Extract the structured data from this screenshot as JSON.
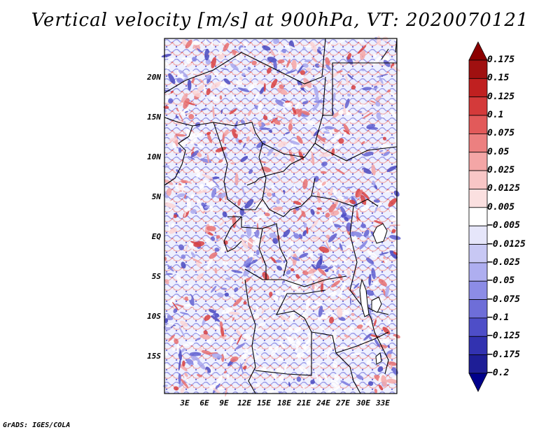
{
  "title": "Vertical velocity [m/s] at 900hPa, VT: 2020070121",
  "footer": "GrADS: IGES/COLA",
  "map": {
    "lat_labels": [
      "20N",
      "15N",
      "10N",
      "5N",
      "EQ",
      "5S",
      "10S",
      "15S"
    ],
    "lon_labels": [
      "3E",
      "6E",
      "9E",
      "12E",
      "15E",
      "18E",
      "21E",
      "24E",
      "27E",
      "30E",
      "33E"
    ]
  },
  "colorbar": {
    "levels": [
      "0.175",
      "0.15",
      "0.125",
      "0.1",
      "0.075",
      "0.05",
      "0.025",
      "0.0125",
      "0.005",
      "−0.005",
      "−0.0125",
      "−0.025",
      "−0.05",
      "−0.075",
      "−0.1",
      "−0.125",
      "−0.175",
      "−0.2"
    ],
    "colors": [
      "#a01010",
      "#c02020",
      "#d43a3a",
      "#e25a5a",
      "#ec8080",
      "#f4a6a6",
      "#f8c6c6",
      "#fbe0e0",
      "#ffffff",
      "#e6e6fa",
      "#c8c8f4",
      "#aeaef0",
      "#8c8ce6",
      "#6e6ed8",
      "#4e4ec8",
      "#3232b0",
      "#1e1e96"
    ],
    "top_arrow_color": "#8b0000",
    "bottom_arrow_color": "#00008b"
  }
}
